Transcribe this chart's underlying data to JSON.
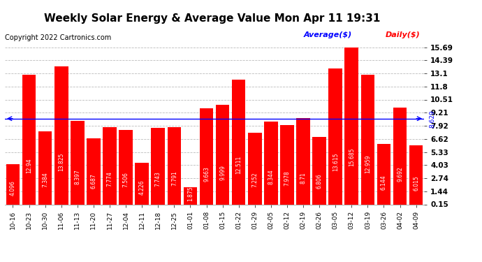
{
  "title": "Weekly Solar Energy & Average Value Mon Apr 11 19:31",
  "copyright": "Copyright 2022 Cartronics.com",
  "categories": [
    "10-16",
    "10-23",
    "10-30",
    "11-06",
    "11-13",
    "11-20",
    "11-27",
    "12-04",
    "12-11",
    "12-18",
    "12-25",
    "01-01",
    "01-08",
    "01-15",
    "01-22",
    "01-29",
    "02-05",
    "02-12",
    "02-19",
    "02-26",
    "03-05",
    "03-12",
    "03-19",
    "03-26",
    "04-02",
    "04-09"
  ],
  "values": [
    4.096,
    12.94,
    7.384,
    13.825,
    8.397,
    6.687,
    7.774,
    7.506,
    4.226,
    7.743,
    7.791,
    1.875,
    9.663,
    9.999,
    12.511,
    7.252,
    8.344,
    7.978,
    8.71,
    6.806,
    13.615,
    15.685,
    12.959,
    6.144,
    9.692,
    6.015
  ],
  "average": 8.629,
  "bar_color": "#ff0000",
  "average_line_color": "#0000ff",
  "yticks": [
    0.15,
    1.44,
    2.74,
    4.03,
    5.33,
    6.62,
    7.92,
    9.21,
    10.51,
    11.8,
    13.1,
    14.39,
    15.69
  ],
  "ymin": 0.15,
  "ymax": 15.69,
  "background_color": "#ffffff",
  "grid_color": "#bbbbbb",
  "legend_average_color": "#0000ff",
  "legend_daily_color": "#ff0000",
  "bar_value_fontsize": 5.5,
  "bar_value_color": "#ffffff",
  "title_fontsize": 11,
  "copyright_fontsize": 7,
  "legend_fontsize": 8,
  "ytick_fontsize": 7.5,
  "xtick_fontsize": 6.5
}
